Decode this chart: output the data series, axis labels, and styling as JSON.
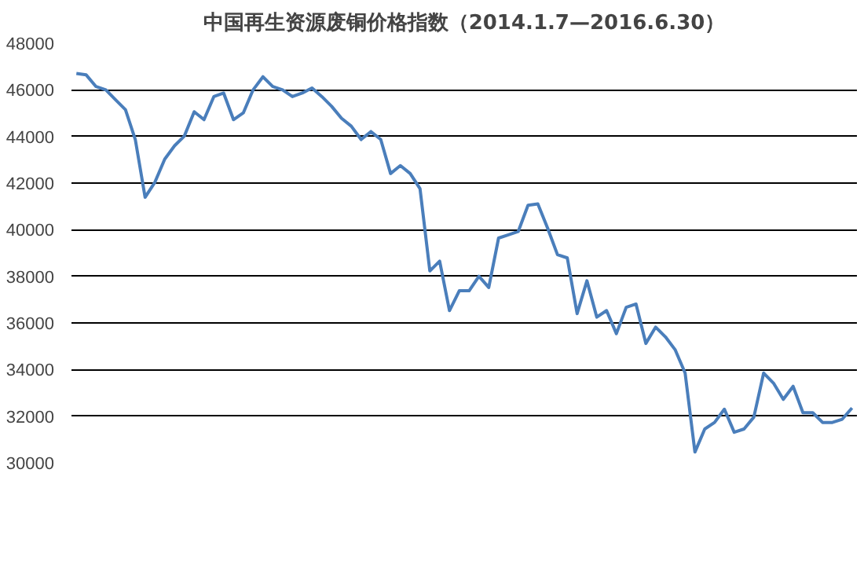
{
  "chart_data": {
    "type": "line",
    "title": "中国再生资源废铜价格指数（2014.1.7—2016.6.30）",
    "categories": [
      null,
      null,
      null,
      null,
      null,
      null,
      null,
      null,
      null,
      null,
      null,
      null,
      null,
      null,
      null,
      null,
      null,
      null,
      null,
      null,
      null,
      null,
      null,
      null,
      null,
      null,
      null,
      null,
      null,
      null,
      null,
      null,
      null,
      null,
      null,
      null,
      null,
      null,
      null,
      null,
      null,
      null,
      null,
      null,
      null,
      null,
      null,
      null,
      null,
      null,
      null,
      null,
      null,
      null,
      null,
      null,
      null,
      null,
      null,
      null,
      null,
      null,
      null,
      null,
      null,
      null,
      null,
      null,
      null,
      null,
      null,
      null,
      null,
      null,
      null,
      null,
      null,
      null,
      null,
      null
    ],
    "series": [
      {
        "color": "#4a7ebb",
        "values": [
          46700,
          46640,
          46140,
          46000,
          45570,
          45150,
          43870,
          41390,
          42040,
          43030,
          43600,
          44020,
          45060,
          44720,
          45710,
          45860,
          44720,
          45010,
          46000,
          46560,
          46140,
          46000,
          45710,
          45860,
          46080,
          45710,
          45290,
          44780,
          44440,
          43870,
          44210,
          43870,
          42410,
          42750,
          42410,
          41760,
          38230,
          38650,
          36530,
          37380,
          37380,
          38000,
          37520,
          39640,
          39780,
          39920,
          41050,
          41110,
          40060,
          38930,
          38790,
          36400,
          37810,
          36250,
          36530,
          35540,
          36670,
          36810,
          35120,
          35820,
          35400,
          34840,
          33850,
          30460,
          31450,
          31730,
          32300,
          31310,
          31450,
          31960,
          33850,
          33420,
          32720,
          33280,
          32150,
          32150,
          31730,
          31730,
          31870,
          32350
        ]
      }
    ],
    "ylim": [
      30000,
      48000
    ],
    "yticks": [
      30000,
      32000,
      34000,
      36000,
      38000,
      40000,
      42000,
      44000,
      46000,
      48000
    ],
    "grid": "y",
    "marker": "none",
    "line_style": "solid"
  }
}
